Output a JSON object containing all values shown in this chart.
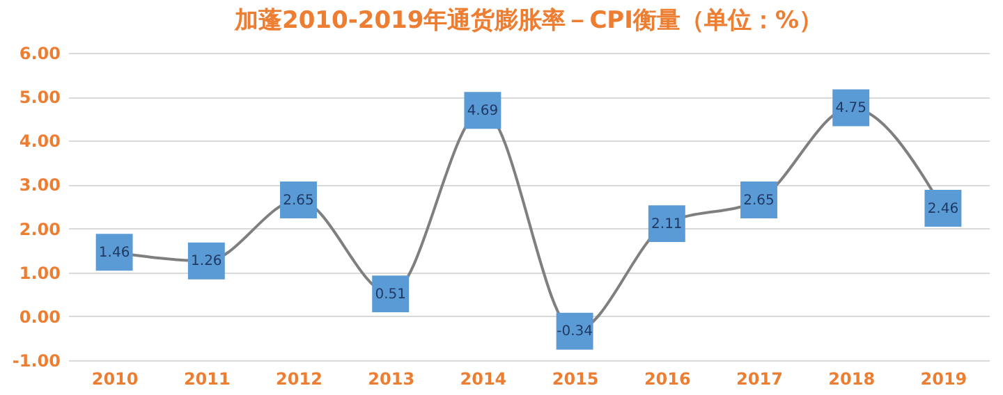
{
  "chart_data": {
    "type": "line",
    "title": "加蓬2010-2019年通货膨胀率－CPI衡量（单位：%）",
    "categories": [
      "2010",
      "2011",
      "2012",
      "2013",
      "2014",
      "2015",
      "2016",
      "2017",
      "2018",
      "2019"
    ],
    "series": [
      {
        "color": "#7f7f7f",
        "values": [
          1.46,
          1.26,
          2.65,
          0.51,
          4.69,
          -0.34,
          2.11,
          2.65,
          4.75,
          2.46
        ]
      }
    ],
    "data_labels": true,
    "marker": "square",
    "line_style": "solid",
    "ylim": [
      -1,
      6
    ],
    "yticks": [
      {
        "value": -1,
        "label": "-1.00"
      },
      {
        "value": 0,
        "label": "0.00"
      },
      {
        "value": 1,
        "label": "1.00"
      },
      {
        "value": 2,
        "label": "2.00"
      },
      {
        "value": 3,
        "label": "3.00"
      },
      {
        "value": 4,
        "label": "4.00"
      },
      {
        "value": 5,
        "label": "5.00"
      },
      {
        "value": 6,
        "label": "6.00"
      }
    ],
    "grid": "y"
  }
}
